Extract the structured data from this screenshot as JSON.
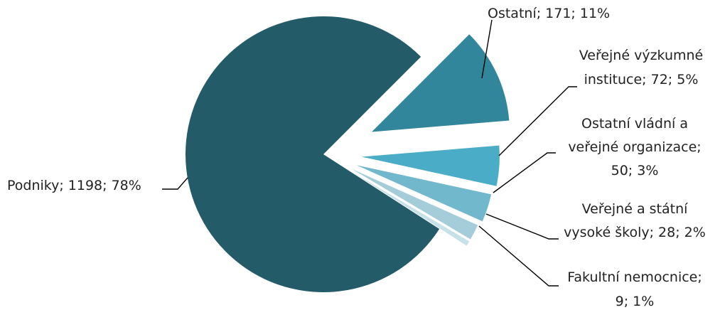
{
  "chart_data": {
    "type": "pie",
    "title": "",
    "categories": [
      "Ostatní",
      "Veřejné výzkumné instituce",
      "Ostatní vládní a veřejné organizace",
      "Veřejné a státní vysoké školy",
      "Fakultní nemocnice",
      "Podniky"
    ],
    "values": [
      171,
      72,
      50,
      28,
      9,
      1198
    ],
    "percent_labels": [
      "11%",
      "5%",
      "3%",
      "2%",
      "1%",
      "78%"
    ],
    "slice_colors": [
      "#31869b",
      "#4aacc6",
      "#72b8cc",
      "#a5cdd9",
      "#c7e1e8",
      "#245b69"
    ],
    "exploded_slices": [
      "Ostatní",
      "Veřejné výzkumné instituce",
      "Ostatní vládní a veřejné organizace",
      "Veřejné a státní vysoké školy",
      "Fakultní nemocnice"
    ],
    "data_labels": [
      {
        "slice": "Ostatní",
        "lines": [
          "Ostatní; 171; 11%"
        ]
      },
      {
        "slice": "Veřejné výzkumné instituce",
        "lines": [
          "Veřejné výzkumné",
          "instituce; 72; 5%"
        ]
      },
      {
        "slice": "Ostatní vládní a veřejné organizace",
        "lines": [
          "Ostatní vládní a",
          "veřejné organizace;",
          "50; 3%"
        ]
      },
      {
        "slice": "Veřejné a státní vysoké školy",
        "lines": [
          "Veřejné a státní",
          "vysoké školy; 28; 2%"
        ]
      },
      {
        "slice": "Fakultní nemocnice",
        "lines": [
          "Fakultní nemocnice;",
          "9; 1%"
        ]
      },
      {
        "slice": "Podniky",
        "lines": [
          "Podniky; 1198; 78%"
        ]
      }
    ],
    "legend": "none"
  }
}
